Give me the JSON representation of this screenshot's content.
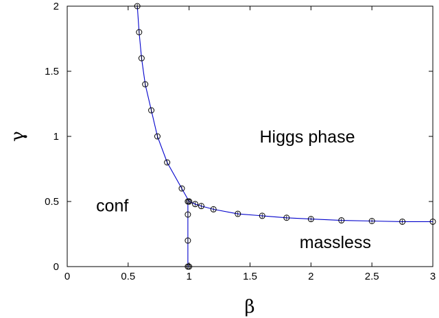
{
  "chart_data": {
    "type": "line",
    "title": "",
    "xlabel": "β",
    "ylabel": "γ",
    "xlim": [
      0,
      3
    ],
    "ylim": [
      0,
      2
    ],
    "xticks": [
      "0",
      "0.5",
      "1",
      "1.5",
      "2",
      "2.5",
      "3"
    ],
    "yticks": [
      "0",
      "0.5",
      "1",
      "1.5",
      "2"
    ],
    "grid": false,
    "line_color": "#0000cc",
    "marker_color": "#000000",
    "annotations": [
      {
        "text": "Higgs phase",
        "x": 1.97,
        "y": 1.0
      },
      {
        "text": "conf",
        "x": 0.37,
        "y": 0.47
      },
      {
        "text": "massless",
        "x": 2.2,
        "y": 0.19
      }
    ],
    "series": [
      {
        "x": [
          0.575,
          0.59,
          0.61,
          0.64,
          0.69,
          0.74,
          0.82,
          0.94,
          1.0
        ],
        "y": [
          2.0,
          1.8,
          1.6,
          1.4,
          1.2,
          1.0,
          0.8,
          0.6,
          0.5
        ]
      },
      {
        "x": [
          1.0,
          1.05,
          1.1,
          1.2,
          1.4,
          1.6,
          1.8,
          2.0,
          2.25,
          2.5,
          2.75,
          3.0
        ],
        "y": [
          0.5,
          0.48,
          0.465,
          0.44,
          0.405,
          0.39,
          0.375,
          0.365,
          0.355,
          0.35,
          0.345,
          0.345
        ]
      },
      {
        "x": [
          0.99,
          0.99,
          0.99,
          0.99,
          1.0
        ],
        "y": [
          0.5,
          0.4,
          0.2,
          0.0,
          0.0
        ]
      }
    ]
  }
}
